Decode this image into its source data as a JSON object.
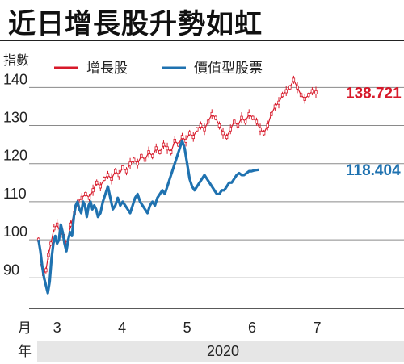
{
  "title": "近日增長股升勢如虹",
  "chart_data": {
    "type": "line",
    "ylabel": "指數",
    "yticks": [
      90,
      100,
      110,
      120,
      130,
      140
    ],
    "ylim": [
      82,
      146
    ],
    "month_label": "月",
    "year_label": "年",
    "year": "2020",
    "months": [
      {
        "label": "3",
        "x": 3.3
      },
      {
        "label": "4",
        "x": 4.35
      },
      {
        "label": "5",
        "x": 5.4
      },
      {
        "label": "6",
        "x": 6.45
      },
      {
        "label": "7",
        "x": 7.5
      }
    ],
    "xlim": [
      2.9,
      8.25
    ],
    "series": [
      {
        "name": "增長股",
        "color": "#d7192a",
        "style": "candlestick",
        "end_label": "138.721",
        "points": [
          [
            3.0,
            100
          ],
          [
            3.04,
            94
          ],
          [
            3.08,
            91
          ],
          [
            3.12,
            92
          ],
          [
            3.16,
            96
          ],
          [
            3.2,
            99
          ],
          [
            3.25,
            103
          ],
          [
            3.3,
            104
          ],
          [
            3.35,
            102
          ],
          [
            3.4,
            101
          ],
          [
            3.46,
            99
          ],
          [
            3.52,
            104
          ],
          [
            3.58,
            107
          ],
          [
            3.64,
            110
          ],
          [
            3.7,
            111
          ],
          [
            3.76,
            112
          ],
          [
            3.82,
            111
          ],
          [
            3.88,
            113
          ],
          [
            3.94,
            115
          ],
          [
            4.0,
            114
          ],
          [
            4.06,
            116
          ],
          [
            4.12,
            117
          ],
          [
            4.18,
            116
          ],
          [
            4.24,
            118
          ],
          [
            4.3,
            117
          ],
          [
            4.36,
            119
          ],
          [
            4.42,
            118
          ],
          [
            4.48,
            120
          ],
          [
            4.54,
            121
          ],
          [
            4.6,
            120
          ],
          [
            4.66,
            122
          ],
          [
            4.72,
            121
          ],
          [
            4.78,
            123
          ],
          [
            4.84,
            122
          ],
          [
            4.9,
            124
          ],
          [
            4.96,
            123
          ],
          [
            5.02,
            125
          ],
          [
            5.08,
            124
          ],
          [
            5.14,
            123
          ],
          [
            5.2,
            126
          ],
          [
            5.26,
            125
          ],
          [
            5.32,
            127
          ],
          [
            5.38,
            126
          ],
          [
            5.44,
            128
          ],
          [
            5.5,
            127
          ],
          [
            5.56,
            129
          ],
          [
            5.62,
            130
          ],
          [
            5.68,
            129
          ],
          [
            5.74,
            131
          ],
          [
            5.8,
            133
          ],
          [
            5.86,
            132
          ],
          [
            5.92,
            130
          ],
          [
            5.98,
            128
          ],
          [
            6.04,
            127
          ],
          [
            6.1,
            129
          ],
          [
            6.16,
            131
          ],
          [
            6.22,
            130
          ],
          [
            6.28,
            132
          ],
          [
            6.34,
            131
          ],
          [
            6.4,
            133
          ],
          [
            6.46,
            132
          ],
          [
            6.52,
            131
          ],
          [
            6.58,
            129
          ],
          [
            6.64,
            128
          ],
          [
            6.7,
            130
          ],
          [
            6.76,
            133
          ],
          [
            6.82,
            135
          ],
          [
            6.88,
            136
          ],
          [
            6.94,
            138
          ],
          [
            7.0,
            139
          ],
          [
            7.06,
            140
          ],
          [
            7.12,
            142
          ],
          [
            7.18,
            140
          ],
          [
            7.24,
            138
          ],
          [
            7.3,
            137
          ],
          [
            7.36,
            138
          ],
          [
            7.42,
            139
          ],
          [
            7.48,
            138.7
          ]
        ]
      },
      {
        "name": "價值型股票",
        "color": "#1f72b0",
        "style": "line",
        "end_label": "118.404",
        "points": [
          [
            3.0,
            100
          ],
          [
            3.03,
            97
          ],
          [
            3.06,
            93
          ],
          [
            3.09,
            90
          ],
          [
            3.12,
            88
          ],
          [
            3.15,
            86
          ],
          [
            3.18,
            89
          ],
          [
            3.21,
            95
          ],
          [
            3.24,
            99
          ],
          [
            3.27,
            101
          ],
          [
            3.3,
            99
          ],
          [
            3.33,
            100
          ],
          [
            3.36,
            104
          ],
          [
            3.39,
            102
          ],
          [
            3.42,
            99
          ],
          [
            3.45,
            97
          ],
          [
            3.48,
            100
          ],
          [
            3.51,
            102
          ],
          [
            3.54,
            101
          ],
          [
            3.57,
            106
          ],
          [
            3.6,
            109
          ],
          [
            3.63,
            110
          ],
          [
            3.66,
            108
          ],
          [
            3.69,
            107
          ],
          [
            3.72,
            110
          ],
          [
            3.75,
            109
          ],
          [
            3.78,
            106
          ],
          [
            3.81,
            109
          ],
          [
            3.84,
            110
          ],
          [
            3.87,
            108
          ],
          [
            3.9,
            109
          ],
          [
            3.93,
            108
          ],
          [
            3.96,
            106
          ],
          [
            4.0,
            107
          ],
          [
            4.04,
            110
          ],
          [
            4.08,
            112
          ],
          [
            4.12,
            114
          ],
          [
            4.16,
            111
          ],
          [
            4.2,
            108
          ],
          [
            4.24,
            109
          ],
          [
            4.28,
            111
          ],
          [
            4.32,
            109
          ],
          [
            4.36,
            110
          ],
          [
            4.4,
            109
          ],
          [
            4.44,
            108
          ],
          [
            4.48,
            107
          ],
          [
            4.52,
            109
          ],
          [
            4.56,
            111
          ],
          [
            4.6,
            112
          ],
          [
            4.64,
            110
          ],
          [
            4.68,
            109
          ],
          [
            4.72,
            108
          ],
          [
            4.76,
            107
          ],
          [
            4.8,
            109
          ],
          [
            4.84,
            110
          ],
          [
            4.88,
            109
          ],
          [
            4.92,
            111
          ],
          [
            4.96,
            112
          ],
          [
            5.0,
            113
          ],
          [
            5.04,
            112
          ],
          [
            5.08,
            114
          ],
          [
            5.12,
            116
          ],
          [
            5.16,
            118
          ],
          [
            5.2,
            120
          ],
          [
            5.24,
            122
          ],
          [
            5.28,
            124
          ],
          [
            5.32,
            126
          ],
          [
            5.36,
            124
          ],
          [
            5.4,
            120
          ],
          [
            5.44,
            116
          ],
          [
            5.48,
            114
          ],
          [
            5.52,
            113
          ],
          [
            5.56,
            114
          ],
          [
            5.6,
            115
          ],
          [
            5.64,
            116
          ],
          [
            5.68,
            117
          ],
          [
            5.72,
            116
          ],
          [
            5.76,
            115
          ],
          [
            5.8,
            114
          ],
          [
            5.84,
            113
          ],
          [
            5.88,
            112
          ],
          [
            5.92,
            112
          ],
          [
            5.96,
            113
          ],
          [
            6.0,
            113
          ],
          [
            6.04,
            114
          ],
          [
            6.08,
            115
          ],
          [
            6.12,
            115
          ],
          [
            6.16,
            116
          ],
          [
            6.2,
            117
          ],
          [
            6.24,
            117.5
          ],
          [
            6.28,
            117
          ],
          [
            6.32,
            117
          ],
          [
            6.36,
            117.5
          ],
          [
            6.4,
            118
          ],
          [
            6.44,
            118
          ],
          [
            6.48,
            118.2
          ],
          [
            6.52,
            118.3
          ],
          [
            6.56,
            118.4
          ]
        ]
      }
    ]
  }
}
